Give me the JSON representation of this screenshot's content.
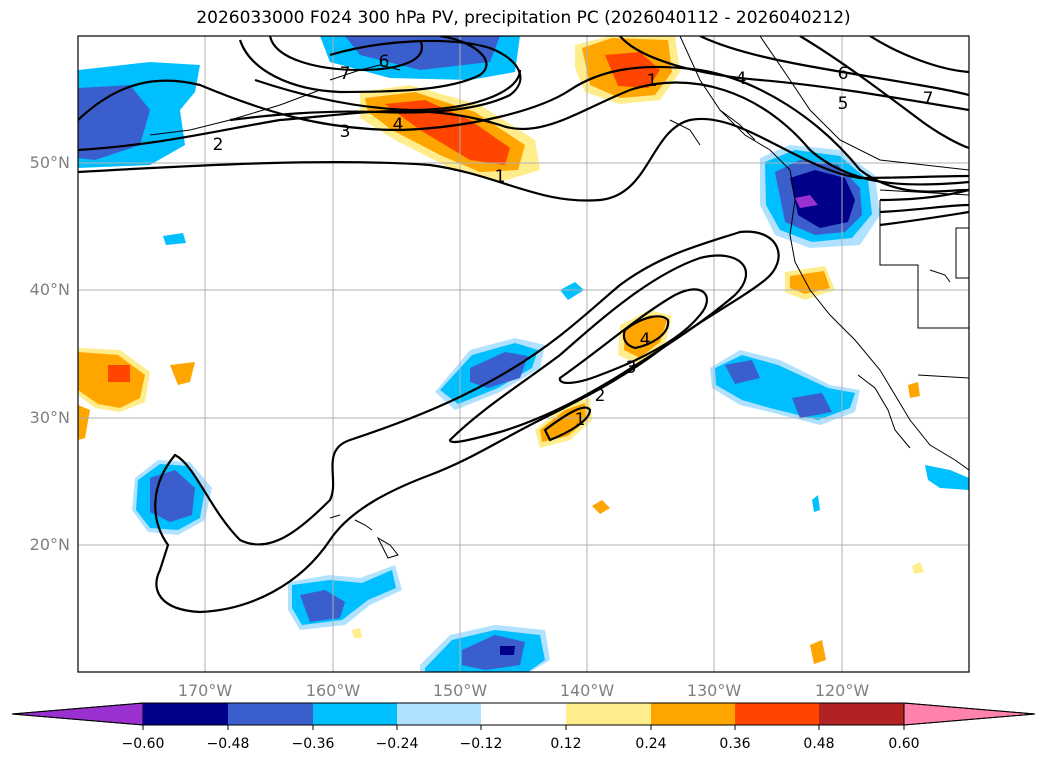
{
  "title": "2026033000 F024 300 hPa PV, precipitation PC (2026040112 - 2026040212)",
  "map": {
    "lat_labels": [
      "50°N",
      "40°N",
      "30°N",
      "20°N"
    ],
    "lon_labels": [
      "170°W",
      "160°W",
      "150°W",
      "140°W",
      "130°W",
      "120°W"
    ],
    "contour_labels": [
      "2",
      "3",
      "4",
      "1",
      "6",
      "7",
      "4",
      "6",
      "5",
      "7",
      "4",
      "3",
      "2",
      "1",
      "1"
    ]
  },
  "colorbar": {
    "ticks": [
      "−0.60",
      "−0.48",
      "−0.36",
      "−0.24",
      "−0.12",
      "0.12",
      "0.24",
      "0.36",
      "0.48",
      "0.60"
    ],
    "colors": [
      "#9b30d0",
      "#00008b",
      "#3a5fcd",
      "#00bfff",
      "#b0e2ff",
      "#ffffff",
      "#ffec8b",
      "#ffa500",
      "#ff4500",
      "#b22222",
      "#ff82ab"
    ]
  },
  "chart_data": {
    "type": "heatmap",
    "title": "2026033000 F024 300 hPa PV, precipitation PC (2026040112 - 2026040212)",
    "variables": [
      "300 hPa PV (contours)",
      "precipitation PC (shaded)"
    ],
    "lon_range": [
      "180°W",
      "110°W"
    ],
    "lat_range": [
      "10°N",
      "60°N"
    ],
    "contour_levels": [
      1,
      2,
      3,
      4,
      5,
      6,
      7
    ],
    "shading_levels": [
      -0.6,
      -0.48,
      -0.36,
      -0.24,
      -0.12,
      0.12,
      0.24,
      0.36,
      0.48,
      0.6
    ]
  }
}
